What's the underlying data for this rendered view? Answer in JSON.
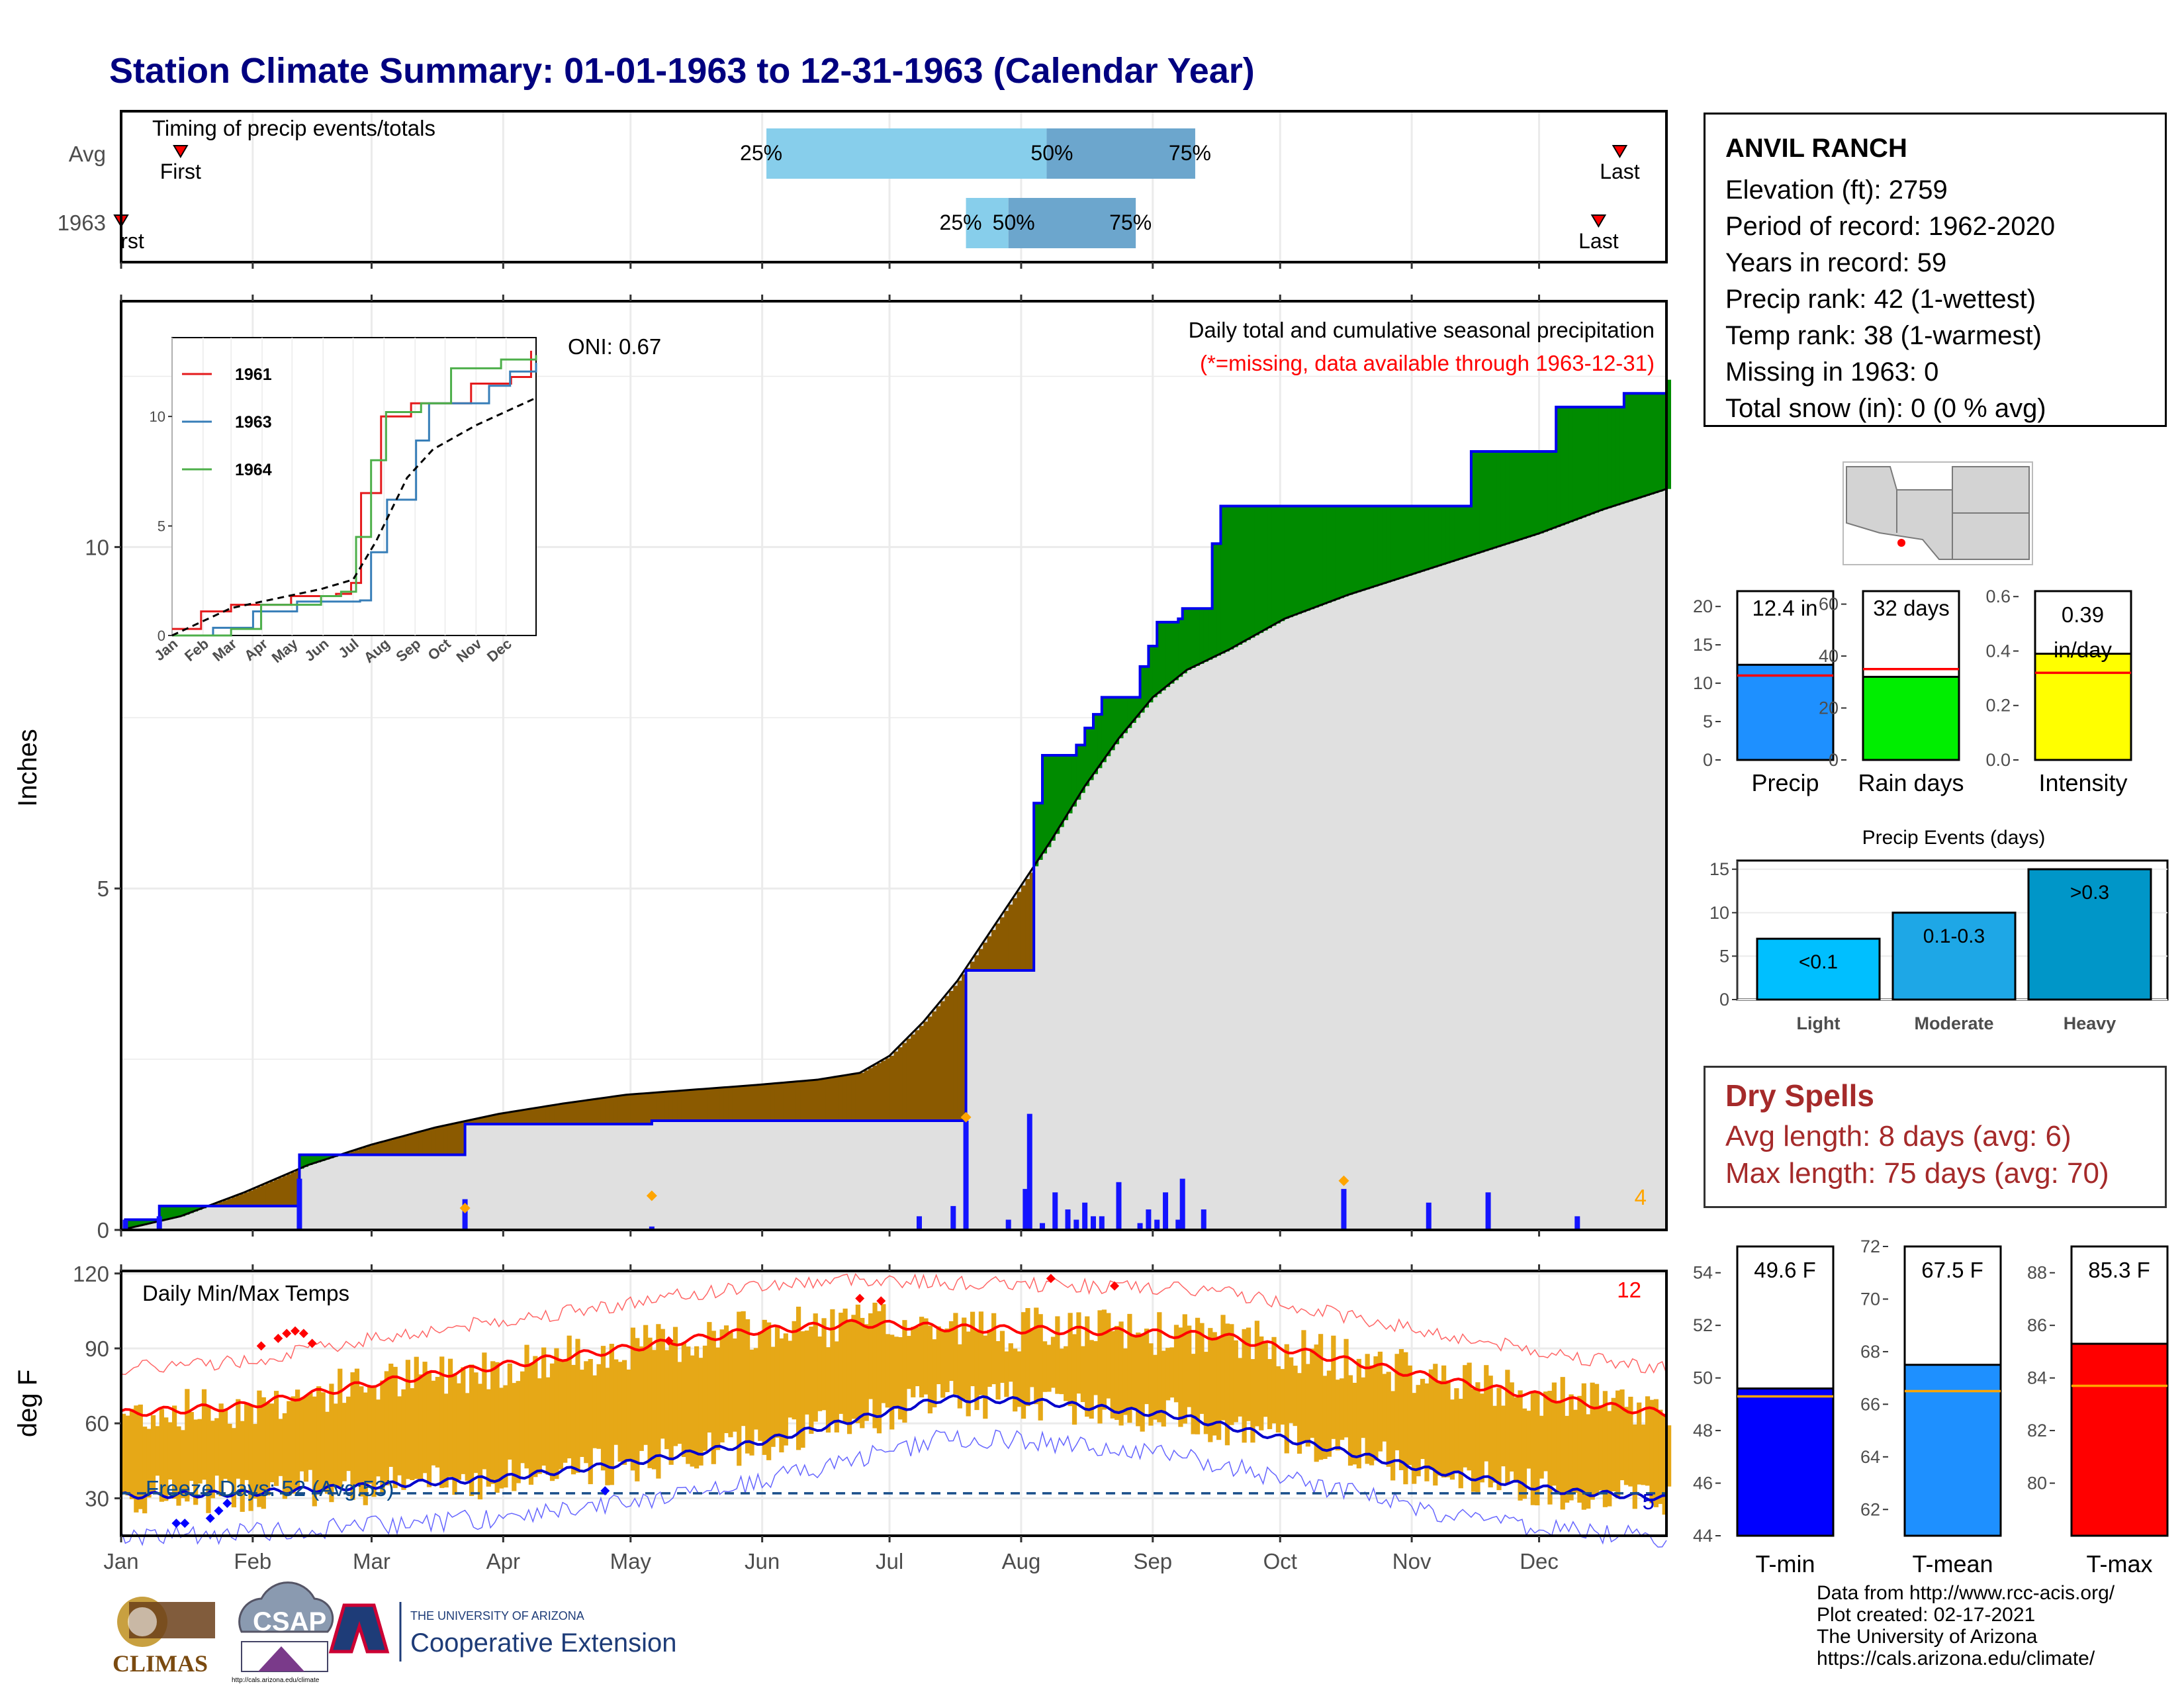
{
  "title": "Station Climate Summary: 01-01-1963 to 12-31-1963 (Calendar Year)",
  "timing": {
    "label": "Timing of precip events/totals",
    "rows": [
      "Avg",
      "1963"
    ],
    "avg": {
      "first_doy": 15,
      "q25_doy": 153,
      "q50_doy": 219,
      "q75_doy": 254,
      "last_doy": 354
    },
    "y1963": {
      "first_doy": 1,
      "q25_doy": 200,
      "q50_doy": 210,
      "q75_doy": 240,
      "last_doy": 349
    },
    "first_label": "First",
    "last_label": "Last",
    "first_label_clipped": "rst",
    "q_labels": [
      "25%",
      "50%",
      "75%"
    ]
  },
  "months": [
    "Jan",
    "Feb",
    "Mar",
    "Apr",
    "May",
    "Jun",
    "Jul",
    "Aug",
    "Sep",
    "Oct",
    "Nov",
    "Dec"
  ],
  "precip": {
    "ylabel": "Inches",
    "yticks": [
      0,
      5,
      10
    ],
    "ylim": [
      0,
      13.6
    ],
    "header": "Daily total and cumulative seasonal precipitation",
    "missing_note": "(*=missing, data available through 1963-12-31)",
    "oni": "ONI: 0.67",
    "corner_count": "4",
    "colors": {
      "below": "#8B5A00",
      "above": "#008B00",
      "avg_fill": "#E0E0E0",
      "obs_line": "#0000EE"
    }
  },
  "chart_data": {
    "type": "area",
    "x_unit": "day of year",
    "observed_cumulative": [
      [
        1,
        0
      ],
      [
        2,
        0.15
      ],
      [
        10,
        0.35
      ],
      [
        42,
        0.35
      ],
      [
        43,
        1.1
      ],
      [
        81,
        1.1
      ],
      [
        82,
        1.55
      ],
      [
        125,
        1.55
      ],
      [
        126,
        1.6
      ],
      [
        188,
        1.6
      ],
      [
        189,
        1.6
      ],
      [
        200,
        3.8
      ],
      [
        215,
        3.8
      ],
      [
        216,
        6.25
      ],
      [
        218,
        6.95
      ],
      [
        225,
        6.95
      ],
      [
        226,
        7.1
      ],
      [
        228,
        7.35
      ],
      [
        230,
        7.55
      ],
      [
        232,
        7.8
      ],
      [
        240,
        7.8
      ],
      [
        241,
        8.25
      ],
      [
        243,
        8.55
      ],
      [
        245,
        8.9
      ],
      [
        250,
        8.95
      ],
      [
        251,
        9.1
      ],
      [
        258,
        10.05
      ],
      [
        260,
        10.6
      ],
      [
        270,
        10.6
      ],
      [
        318,
        10.6
      ],
      [
        319,
        11.4
      ],
      [
        338,
        11.4
      ],
      [
        339,
        12.05
      ],
      [
        354,
        12.05
      ],
      [
        355,
        12.25
      ],
      [
        365,
        12.45
      ]
    ],
    "average_cumulative": [
      [
        1,
        0
      ],
      [
        15,
        0.2
      ],
      [
        30,
        0.55
      ],
      [
        45,
        0.95
      ],
      [
        60,
        1.25
      ],
      [
        75,
        1.5
      ],
      [
        90,
        1.7
      ],
      [
        105,
        1.85
      ],
      [
        120,
        1.98
      ],
      [
        135,
        2.05
      ],
      [
        150,
        2.12
      ],
      [
        165,
        2.2
      ],
      [
        175,
        2.3
      ],
      [
        182,
        2.55
      ],
      [
        190,
        3.05
      ],
      [
        198,
        3.65
      ],
      [
        205,
        4.3
      ],
      [
        212,
        4.95
      ],
      [
        220,
        5.7
      ],
      [
        228,
        6.5
      ],
      [
        236,
        7.2
      ],
      [
        244,
        7.8
      ],
      [
        252,
        8.2
      ],
      [
        262,
        8.5
      ],
      [
        275,
        8.95
      ],
      [
        290,
        9.3
      ],
      [
        305,
        9.6
      ],
      [
        320,
        9.9
      ],
      [
        335,
        10.2
      ],
      [
        350,
        10.55
      ],
      [
        365,
        10.85
      ]
    ],
    "daily_bars": [
      [
        2,
        0.15
      ],
      [
        10,
        0.2
      ],
      [
        43,
        0.75
      ],
      [
        82,
        0.45
      ],
      [
        126,
        0.05
      ],
      [
        189,
        0.2
      ],
      [
        197,
        0.35
      ],
      [
        200,
        1.6
      ],
      [
        210,
        0.15
      ],
      [
        214,
        0.6
      ],
      [
        215,
        1.7
      ],
      [
        218,
        0.1
      ],
      [
        221,
        0.55
      ],
      [
        224,
        0.3
      ],
      [
        226,
        0.15
      ],
      [
        228,
        0.4
      ],
      [
        230,
        0.2
      ],
      [
        232,
        0.2
      ],
      [
        236,
        0.7
      ],
      [
        241,
        0.1
      ],
      [
        243,
        0.3
      ],
      [
        245,
        0.15
      ],
      [
        247,
        0.55
      ],
      [
        250,
        0.15
      ],
      [
        251,
        0.75
      ],
      [
        256,
        0.3
      ],
      [
        289,
        0.6
      ],
      [
        309,
        0.4
      ],
      [
        323,
        0.55
      ],
      [
        344,
        0.2
      ]
    ],
    "inset": {
      "legend": [
        "1961",
        "1963",
        "1964"
      ],
      "colors": {
        "1961": "#E41A1C",
        "1963": "#377EB8",
        "1964": "#4DAF4A"
      },
      "yticks": [
        0,
        5,
        10
      ],
      "ylim": [
        0,
        13.6
      ],
      "series": {
        "1961": [
          [
            1,
            0.3
          ],
          [
            20,
            0.3
          ],
          [
            30,
            1.1
          ],
          [
            60,
            1.4
          ],
          [
            120,
            1.8
          ],
          [
            165,
            1.9
          ],
          [
            180,
            2.4
          ],
          [
            190,
            6.5
          ],
          [
            210,
            10.0
          ],
          [
            240,
            10.6
          ],
          [
            300,
            11.5
          ],
          [
            340,
            11.8
          ],
          [
            360,
            13.0
          ]
        ],
        "1963": [
          [
            1,
            0
          ],
          [
            42,
            0.35
          ],
          [
            82,
            1.1
          ],
          [
            126,
            1.55
          ],
          [
            189,
            1.6
          ],
          [
            200,
            3.8
          ],
          [
            216,
            6.2
          ],
          [
            245,
            8.9
          ],
          [
            258,
            10.6
          ],
          [
            318,
            11.4
          ],
          [
            339,
            12.05
          ],
          [
            365,
            12.45
          ]
        ],
        "1964": [
          [
            1,
            0
          ],
          [
            60,
            0.3
          ],
          [
            90,
            1.4
          ],
          [
            150,
            1.8
          ],
          [
            170,
            2.0
          ],
          [
            185,
            4.5
          ],
          [
            200,
            8.0
          ],
          [
            215,
            10.2
          ],
          [
            250,
            10.6
          ],
          [
            280,
            12.2
          ],
          [
            330,
            12.6
          ],
          [
            365,
            12.8
          ]
        ],
        "avg": [
          [
            1,
            0
          ],
          [
            60,
            1.25
          ],
          [
            150,
            2.12
          ],
          [
            182,
            2.55
          ],
          [
            205,
            4.3
          ],
          [
            236,
            7.2
          ],
          [
            262,
            8.5
          ],
          [
            305,
            9.6
          ],
          [
            365,
            10.85
          ]
        ]
      }
    },
    "temperature": {
      "ylabel": "deg F",
      "header": "Daily Min/Max Temps",
      "yticks": [
        30,
        60,
        90,
        120
      ],
      "ylim": [
        15,
        121
      ],
      "freeze_label": "Freeze Days: 52 (Avg:53)",
      "freeze_line": 32,
      "record_high_count": "12",
      "record_low_count": "5",
      "avg_max_curve": [
        [
          1,
          64
        ],
        [
          30,
          67
        ],
        [
          60,
          76
        ],
        [
          90,
          83
        ],
        [
          120,
          90
        ],
        [
          150,
          97
        ],
        [
          175,
          100
        ],
        [
          200,
          98
        ],
        [
          230,
          97
        ],
        [
          260,
          95
        ],
        [
          290,
          85
        ],
        [
          320,
          75
        ],
        [
          350,
          67
        ],
        [
          365,
          64
        ]
      ],
      "avg_min_curve": [
        [
          1,
          31
        ],
        [
          30,
          32
        ],
        [
          60,
          35
        ],
        [
          90,
          38
        ],
        [
          120,
          44
        ],
        [
          150,
          52
        ],
        [
          175,
          62
        ],
        [
          195,
          70
        ],
        [
          215,
          69
        ],
        [
          250,
          63
        ],
        [
          280,
          52
        ],
        [
          310,
          41
        ],
        [
          340,
          33
        ],
        [
          365,
          30
        ]
      ],
      "colors": {
        "range": "#E6A817",
        "avg_max": "#FF0000",
        "avg_min": "#0000CC"
      }
    }
  },
  "summary_bars": {
    "precip": {
      "label": "Precip",
      "value": 12.4,
      "text": "12.4 in",
      "avg": 11.0,
      "ylim": [
        0,
        22
      ],
      "yticks": [
        0,
        5,
        10,
        15,
        20
      ],
      "color": "#1E90FF"
    },
    "rain_days": {
      "label": "Rain days",
      "value": 32,
      "text": "32 days",
      "avg": 35,
      "ylim": [
        0,
        65
      ],
      "yticks": [
        0,
        20,
        40,
        60
      ],
      "color": "#00EE00"
    },
    "intensity": {
      "label": "Intensity",
      "value": 0.39,
      "text": "0.39 in/day",
      "avg": 0.32,
      "ylim": [
        0,
        0.62
      ],
      "yticks": [
        0.0,
        0.2,
        0.4,
        0.6
      ],
      "color": "#FFFF00"
    },
    "events": {
      "title": "Precip Events (days)",
      "categories": [
        "Light",
        "Moderate",
        "Heavy"
      ],
      "bar_labels": [
        "<0.1",
        "0.1-0.3",
        ">0.3"
      ],
      "values": [
        7,
        10,
        15
      ],
      "yticks": [
        0,
        5,
        10,
        15
      ],
      "colors": [
        "#00BFFF",
        "#1EA7E6",
        "#0096C8"
      ]
    },
    "tmin": {
      "label": "T-min",
      "value": 49.6,
      "text": "49.6 F",
      "avg": 49.3,
      "ylim": [
        44,
        55
      ],
      "yticks": [
        44,
        46,
        48,
        50,
        52,
        54
      ],
      "color": "#0000FF"
    },
    "tmean": {
      "label": "T-mean",
      "value": 67.5,
      "text": "67.5 F",
      "avg": 66.5,
      "ylim": [
        61,
        72
      ],
      "yticks": [
        62,
        64,
        66,
        68,
        70,
        72
      ],
      "color": "#1E90FF"
    },
    "tmax": {
      "label": "T-max",
      "value": 85.3,
      "text": "85.3 F",
      "avg": 83.7,
      "ylim": [
        78,
        89
      ],
      "yticks": [
        80,
        82,
        84,
        86,
        88
      ],
      "color": "#FF0000"
    }
  },
  "station": {
    "name": "ANVIL RANCH",
    "lines": [
      "Elevation (ft): 2759",
      "Period of record: 1962-2020",
      "Years in record: 59",
      "Precip rank: 42 (1-wettest)",
      "Temp rank: 38 (1-warmest)",
      "Missing in 1963: 0",
      "Total snow (in): 0 (0 % avg)"
    ]
  },
  "dry_spells": {
    "heading": "Dry Spells",
    "avg_length": "Avg length: 8 days (avg: 6)",
    "max_length": "Max length: 75 days (avg: 70)"
  },
  "credits": [
    "Data from http://www.rcc-acis.org/",
    "Plot created: 02-17-2021",
    "The University of Arizona",
    "https://cals.arizona.edu/climate/"
  ],
  "logos": {
    "climas": "CLIMAS",
    "csap": "CSAP",
    "ua_small": "THE UNIVERSITY OF ARIZONA",
    "ua_big": "Cooperative Extension",
    "csap_url": "http://cals.arizona.edu/climate"
  }
}
